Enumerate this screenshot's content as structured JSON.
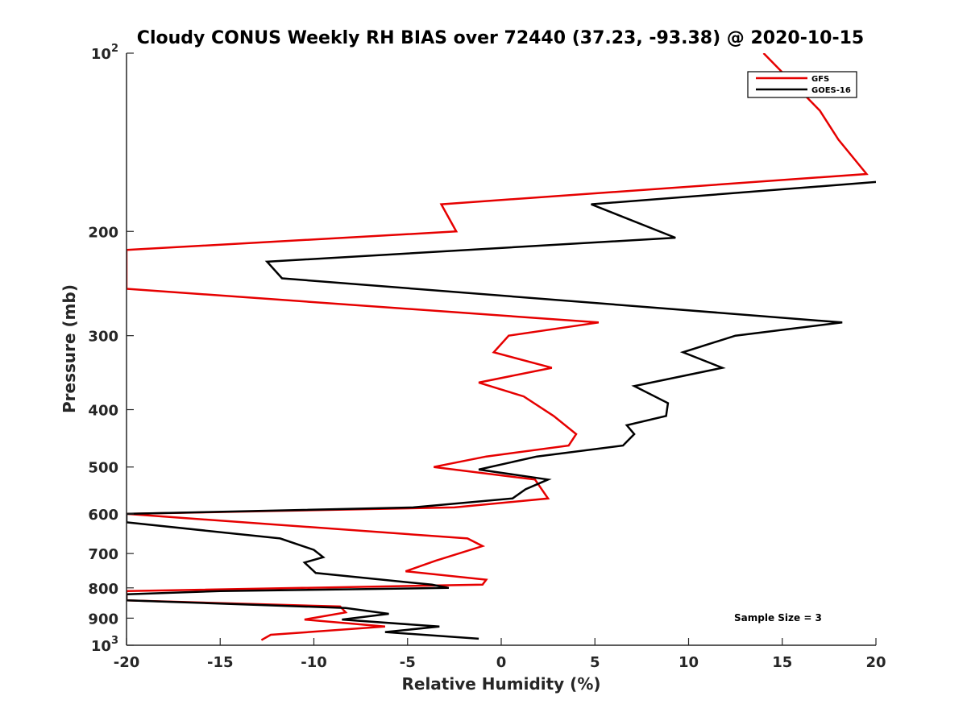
{
  "chart_data": {
    "type": "line",
    "title": "Cloudy CONUS Weekly RH BIAS over 72440 (37.23, -93.38) @ 2020-10-15",
    "xlabel": "Relative Humidity (%)",
    "ylabel": "Pressure (mb)",
    "xlim": [
      -20,
      20
    ],
    "ylim": [
      100,
      1000
    ],
    "y_scale": "log",
    "y_reversed": true,
    "grid": false,
    "legend_position": "top-right",
    "x_ticks": [
      -20,
      -15,
      -10,
      -5,
      0,
      5,
      10,
      15,
      20
    ],
    "x_tick_labels": [
      "-20",
      "-15",
      "-10",
      "-5",
      "0",
      "5",
      "10",
      "15",
      "20"
    ],
    "y_ticks": [
      100,
      200,
      300,
      400,
      500,
      600,
      700,
      800,
      900,
      1000
    ],
    "y_tick_labels": [
      {
        "base": "10",
        "exp": "2"
      },
      "200",
      "300",
      "400",
      "500",
      "600",
      "700",
      "800",
      "900",
      {
        "base": "10",
        "exp": "3"
      }
    ],
    "annotation": "Sample Size = 3",
    "series": [
      {
        "name": "GFS",
        "color": "#e60000",
        "points": [
          {
            "x": 14.0,
            "p": 100
          },
          {
            "x": 17.0,
            "p": 125
          },
          {
            "x": 18.0,
            "p": 140
          },
          {
            "x": 19.5,
            "p": 160
          },
          {
            "x": -3.2,
            "p": 180
          },
          {
            "x": -2.4,
            "p": 200
          },
          {
            "x": -20.0,
            "p": 215
          },
          {
            "x": -20.0,
            "p": 250
          },
          {
            "x": 5.2,
            "p": 285
          },
          {
            "x": 0.4,
            "p": 300
          },
          {
            "x": -0.4,
            "p": 320
          },
          {
            "x": 2.7,
            "p": 340
          },
          {
            "x": -1.2,
            "p": 360
          },
          {
            "x": 1.2,
            "p": 380
          },
          {
            "x": 2.8,
            "p": 410
          },
          {
            "x": 4.0,
            "p": 440
          },
          {
            "x": 3.6,
            "p": 460
          },
          {
            "x": -0.8,
            "p": 480
          },
          {
            "x": -3.6,
            "p": 500
          },
          {
            "x": 1.8,
            "p": 525
          },
          {
            "x": 2.5,
            "p": 565
          },
          {
            "x": -2.5,
            "p": 585
          },
          {
            "x": -20.0,
            "p": 600
          },
          {
            "x": -1.8,
            "p": 660
          },
          {
            "x": -1.0,
            "p": 680
          },
          {
            "x": -3.5,
            "p": 720
          },
          {
            "x": -5.1,
            "p": 750
          },
          {
            "x": -0.8,
            "p": 775
          },
          {
            "x": -1.0,
            "p": 790
          },
          {
            "x": -20.0,
            "p": 810
          },
          {
            "x": -20.0,
            "p": 840
          },
          {
            "x": -8.6,
            "p": 860
          },
          {
            "x": -8.3,
            "p": 880
          },
          {
            "x": -10.5,
            "p": 905
          },
          {
            "x": -6.2,
            "p": 930
          },
          {
            "x": -12.3,
            "p": 960
          },
          {
            "x": -12.8,
            "p": 980
          }
        ]
      },
      {
        "name": "GOES-16",
        "color": "#000000",
        "points": [
          {
            "x": 20.0,
            "p": 165
          },
          {
            "x": 4.8,
            "p": 180
          },
          {
            "x": 9.3,
            "p": 205
          },
          {
            "x": -12.5,
            "p": 225
          },
          {
            "x": -11.7,
            "p": 240
          },
          {
            "x": 18.2,
            "p": 285
          },
          {
            "x": 12.5,
            "p": 300
          },
          {
            "x": 9.7,
            "p": 320
          },
          {
            "x": 11.8,
            "p": 340
          },
          {
            "x": 7.1,
            "p": 365
          },
          {
            "x": 8.9,
            "p": 390
          },
          {
            "x": 8.8,
            "p": 410
          },
          {
            "x": 6.7,
            "p": 425
          },
          {
            "x": 7.1,
            "p": 440
          },
          {
            "x": 6.5,
            "p": 460
          },
          {
            "x": 1.9,
            "p": 480
          },
          {
            "x": -1.2,
            "p": 505
          },
          {
            "x": 2.5,
            "p": 525
          },
          {
            "x": 1.3,
            "p": 545
          },
          {
            "x": 0.6,
            "p": 565
          },
          {
            "x": -4.7,
            "p": 585
          },
          {
            "x": -20.0,
            "p": 600
          },
          {
            "x": -20.0,
            "p": 620
          },
          {
            "x": -11.8,
            "p": 660
          },
          {
            "x": -10.0,
            "p": 690
          },
          {
            "x": -9.5,
            "p": 710
          },
          {
            "x": -10.5,
            "p": 725
          },
          {
            "x": -9.9,
            "p": 755
          },
          {
            "x": -3.7,
            "p": 790
          },
          {
            "x": -2.8,
            "p": 800
          },
          {
            "x": -15.0,
            "p": 810
          },
          {
            "x": -20.0,
            "p": 820
          },
          {
            "x": -20.0,
            "p": 840
          },
          {
            "x": -8.3,
            "p": 865
          },
          {
            "x": -6.0,
            "p": 885
          },
          {
            "x": -8.5,
            "p": 905
          },
          {
            "x": -3.3,
            "p": 930
          },
          {
            "x": -6.2,
            "p": 950
          },
          {
            "x": -1.2,
            "p": 975
          }
        ]
      }
    ]
  }
}
